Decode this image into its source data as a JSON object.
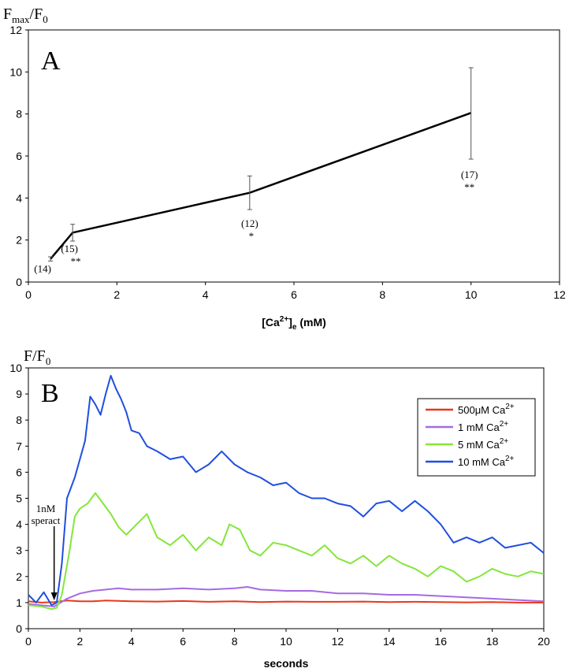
{
  "chart_data": [
    {
      "type": "line",
      "panel_label": "A",
      "ylabel_main": "F",
      "ylabel_sub1": "max",
      "ylabel_mid": "/F",
      "ylabel_sub2": "0",
      "xlabel_pre": "[Ca",
      "xlabel_sup": "2+",
      "xlabel_mid": "]",
      "xlabel_sub": "e",
      "xlabel_post": " (mM)",
      "xlim": [
        0,
        12
      ],
      "ylim": [
        0,
        12
      ],
      "x_ticks": [
        0,
        2,
        4,
        6,
        8,
        10,
        12
      ],
      "y_ticks": [
        0,
        2,
        4,
        6,
        8,
        10,
        12
      ],
      "grid": false,
      "color": "#000000",
      "series": [
        {
          "x": [
            0.5,
            1,
            5,
            10
          ],
          "y": [
            1.1,
            2.35,
            4.25,
            8.05
          ],
          "err_low": [
            1.0,
            1.95,
            3.45,
            5.85
          ],
          "err_high": [
            1.2,
            2.75,
            5.05,
            10.2
          ],
          "n_labels": [
            "(14)",
            "(15)",
            "(12)",
            "(17)"
          ],
          "significance": [
            "",
            "**",
            "*",
            "**"
          ]
        }
      ]
    },
    {
      "type": "line",
      "panel_label": "B",
      "ylabel_main": "F/F",
      "ylabel_sub": "0",
      "xlabel": "seconds",
      "xlim": [
        0,
        20
      ],
      "ylim": [
        0,
        10
      ],
      "x_ticks": [
        0,
        2,
        4,
        6,
        8,
        10,
        12,
        14,
        16,
        18,
        20
      ],
      "y_ticks": [
        0,
        1,
        2,
        3,
        4,
        5,
        6,
        7,
        8,
        9,
        10
      ],
      "grid": false,
      "legend_position": "top-right",
      "annotation_line1": "1nM",
      "annotation_line2": "speract",
      "annotation_arrow_x": 1.0,
      "series": [
        {
          "name_main": "500μM Ca",
          "name_sup": "2+",
          "color": "#e8381c",
          "x": [
            0,
            0.5,
            1,
            1.5,
            2,
            2.5,
            3,
            4,
            5,
            6,
            7,
            8,
            9,
            10,
            11,
            12,
            13,
            14,
            15,
            16,
            17,
            18,
            19,
            20
          ],
          "y": [
            1.05,
            1.0,
            1.02,
            1.08,
            1.05,
            1.05,
            1.08,
            1.05,
            1.04,
            1.06,
            1.03,
            1.05,
            1.02,
            1.04,
            1.03,
            1.03,
            1.04,
            1.02,
            1.03,
            1.02,
            1.01,
            1.02,
            1.0,
            1.0
          ]
        },
        {
          "name_main": "1 mM Ca",
          "name_sup": "2+",
          "color": "#a66be0",
          "x": [
            0,
            0.5,
            1,
            1.5,
            2,
            2.5,
            3,
            3.5,
            4,
            5,
            6,
            7,
            8,
            8.5,
            9,
            10,
            11,
            12,
            13,
            14,
            15,
            16,
            17,
            18,
            19,
            20
          ],
          "y": [
            0.95,
            0.9,
            0.85,
            1.15,
            1.35,
            1.45,
            1.5,
            1.55,
            1.5,
            1.5,
            1.55,
            1.5,
            1.55,
            1.6,
            1.5,
            1.45,
            1.45,
            1.35,
            1.35,
            1.3,
            1.3,
            1.25,
            1.2,
            1.15,
            1.1,
            1.05
          ]
        },
        {
          "name_main": "5 mM Ca",
          "name_sup": "2+",
          "color": "#84e63a",
          "x": [
            0,
            0.5,
            0.9,
            1.1,
            1.3,
            1.6,
            1.8,
            2.0,
            2.3,
            2.6,
            2.9,
            3.2,
            3.5,
            3.8,
            4.2,
            4.6,
            5.0,
            5.5,
            6.0,
            6.5,
            7.0,
            7.5,
            7.8,
            8.2,
            8.6,
            9.0,
            9.5,
            10.0,
            10.5,
            11.0,
            11.5,
            12.0,
            12.5,
            13.0,
            13.5,
            14.0,
            14.5,
            15.0,
            15.5,
            16.0,
            16.5,
            17.0,
            17.5,
            18.0,
            18.5,
            19.0,
            19.5,
            20.0
          ],
          "y": [
            0.9,
            0.85,
            0.75,
            0.8,
            1.3,
            3.0,
            4.3,
            4.6,
            4.8,
            5.2,
            4.8,
            4.4,
            3.9,
            3.6,
            4.0,
            4.4,
            3.5,
            3.2,
            3.6,
            3.0,
            3.5,
            3.2,
            4.0,
            3.8,
            3.0,
            2.8,
            3.3,
            3.2,
            3.0,
            2.8,
            3.2,
            2.7,
            2.5,
            2.8,
            2.4,
            2.8,
            2.5,
            2.3,
            2.0,
            2.4,
            2.2,
            1.8,
            2.0,
            2.3,
            2.1,
            2.0,
            2.2,
            2.1
          ]
        },
        {
          "name_main": "10 mM Ca",
          "name_sup": "2+",
          "color": "#1f4fe0",
          "x": [
            0,
            0.3,
            0.6,
            0.9,
            1.1,
            1.3,
            1.5,
            1.8,
            2.0,
            2.2,
            2.4,
            2.6,
            2.8,
            3.0,
            3.2,
            3.4,
            3.6,
            3.8,
            4.0,
            4.3,
            4.6,
            5.0,
            5.5,
            6.0,
            6.5,
            7.0,
            7.5,
            8.0,
            8.5,
            9.0,
            9.5,
            10.0,
            10.5,
            11.0,
            11.5,
            12.0,
            12.5,
            13.0,
            13.5,
            14.0,
            14.5,
            15.0,
            15.5,
            16.0,
            16.5,
            17.0,
            17.5,
            18.0,
            18.5,
            19.0,
            19.5,
            20.0
          ],
          "y": [
            1.3,
            1.0,
            1.4,
            0.9,
            1.0,
            2.5,
            5.0,
            5.8,
            6.5,
            7.2,
            8.9,
            8.6,
            8.2,
            9.0,
            9.7,
            9.2,
            8.8,
            8.3,
            7.6,
            7.5,
            7.0,
            6.8,
            6.5,
            6.6,
            6.0,
            6.3,
            6.8,
            6.3,
            6.0,
            5.8,
            5.5,
            5.6,
            5.2,
            5.0,
            5.0,
            4.8,
            4.7,
            4.3,
            4.8,
            4.9,
            4.5,
            4.9,
            4.5,
            4.0,
            3.3,
            3.5,
            3.3,
            3.5,
            3.1,
            3.2,
            3.3,
            2.9
          ]
        }
      ]
    }
  ]
}
